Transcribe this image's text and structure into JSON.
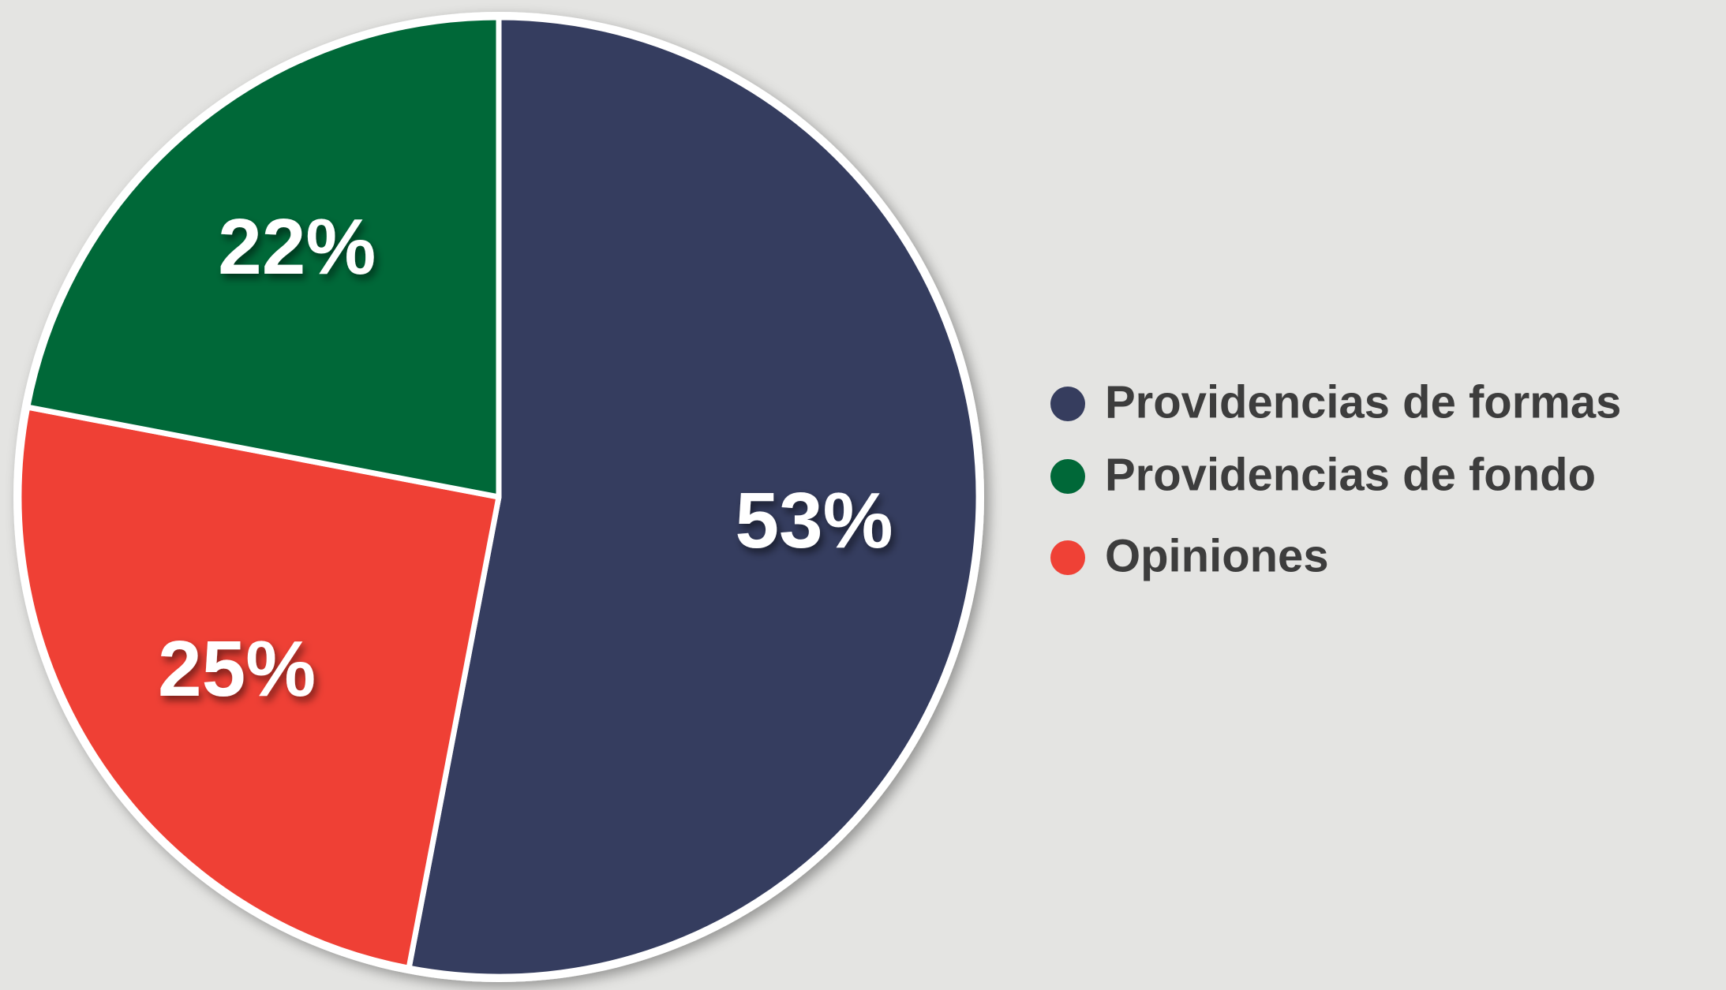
{
  "chart_data": {
    "type": "pie",
    "categories": [
      "Providencias de formas",
      "Providencias de fondo",
      "Opiniones"
    ],
    "values": [
      53,
      22,
      25
    ],
    "value_labels": [
      "53%",
      "22%",
      "25%"
    ],
    "colors": [
      "#363d5e",
      "#006838",
      "#ef4136"
    ],
    "slice_order": [
      0,
      2,
      1
    ],
    "legend": "right"
  }
}
